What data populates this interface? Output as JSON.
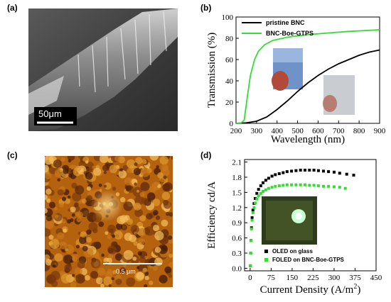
{
  "panels": {
    "a": {
      "label": "(a)",
      "scalebar": "50μm"
    },
    "b": {
      "label": "(b)"
    },
    "c": {
      "label": "(c)",
      "scalebar": "0.5 μm"
    },
    "d": {
      "label": "(d)"
    }
  },
  "chart_data": [
    {
      "panel": "b",
      "type": "line",
      "xlabel": "Wavelength (nm)",
      "ylabel": "Transmission (%)",
      "xlim": [
        200,
        900
      ],
      "ylim": [
        0,
        100
      ],
      "xticks": [
        200,
        300,
        400,
        500,
        600,
        700,
        800,
        900
      ],
      "yticks": [
        0,
        20,
        40,
        60,
        80,
        100
      ],
      "legend_position": "top-left",
      "series": [
        {
          "name": "pristine BNC",
          "color": "#000000",
          "x": [
            200,
            250,
            300,
            350,
            400,
            450,
            500,
            550,
            600,
            650,
            700,
            750,
            800,
            850,
            900
          ],
          "y": [
            0,
            0.5,
            2,
            6,
            13,
            21,
            30,
            38,
            45,
            51,
            56,
            60,
            64,
            67,
            69
          ]
        },
        {
          "name": "BNC-Boe-GTPS",
          "color": "#33dd33",
          "x": [
            200,
            225,
            240,
            255,
            270,
            290,
            310,
            340,
            380,
            450,
            550,
            650,
            750,
            850,
            900
          ],
          "y": [
            0,
            0.5,
            3,
            25,
            45,
            60,
            68,
            74,
            78,
            81,
            83.5,
            85,
            86.5,
            87.5,
            88
          ]
        }
      ]
    },
    {
      "panel": "d",
      "type": "scatter",
      "xlabel": "Current Density (A/m²)",
      "xlabel_main": "Current Density (A/m",
      "xlabel_sup": "2",
      "xlabel_end": ")",
      "ylabel": "Efficiency cd/A",
      "xlim": [
        -20,
        450
      ],
      "ylim": [
        -0.05,
        2.15
      ],
      "xticks": [
        0,
        75,
        150,
        225,
        300,
        375,
        450
      ],
      "yticks": [
        "0.0",
        "0.3",
        "0.6",
        "0.9",
        "1.2",
        "1.5",
        "1.8",
        "2.1"
      ],
      "legend_position": "bottom-left",
      "series": [
        {
          "name": "OLED  on glass",
          "color": "#000000",
          "x": [
            1,
            2,
            3,
            5,
            7,
            10,
            14,
            18,
            24,
            30,
            38,
            46,
            56,
            66,
            78,
            90,
            104,
            118,
            132,
            148,
            164,
            180,
            196,
            212,
            228,
            244,
            262,
            280,
            300,
            320,
            345,
            370
          ],
          "y": [
            0.05,
            0.3,
            0.55,
            0.8,
            1.0,
            1.15,
            1.28,
            1.38,
            1.48,
            1.56,
            1.63,
            1.69,
            1.74,
            1.78,
            1.82,
            1.85,
            1.87,
            1.89,
            1.91,
            1.92,
            1.93,
            1.94,
            1.94,
            1.94,
            1.94,
            1.93,
            1.92,
            1.91,
            1.9,
            1.88,
            1.86,
            1.84
          ]
        },
        {
          "name": "FOLED on BNC-Boe-GTPS",
          "color": "#33dd33",
          "x": [
            1,
            2,
            3,
            5,
            7,
            10,
            14,
            18,
            24,
            30,
            38,
            46,
            56,
            66,
            78,
            90,
            104,
            118,
            132,
            148,
            164,
            180,
            196,
            212,
            228,
            244,
            262,
            280,
            300,
            320,
            340
          ],
          "y": [
            0.05,
            0.3,
            0.55,
            0.78,
            0.95,
            1.1,
            1.2,
            1.29,
            1.37,
            1.43,
            1.48,
            1.52,
            1.55,
            1.58,
            1.6,
            1.62,
            1.63,
            1.64,
            1.65,
            1.65,
            1.65,
            1.65,
            1.65,
            1.64,
            1.64,
            1.63,
            1.62,
            1.62,
            1.61,
            1.6,
            1.58
          ]
        }
      ]
    }
  ]
}
